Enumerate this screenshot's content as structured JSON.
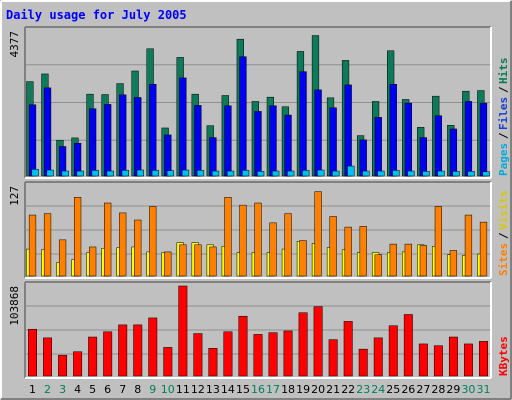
{
  "chart_data": {
    "type": "bar",
    "title": "Daily usage for July 2005",
    "categories": [
      "1",
      "2",
      "3",
      "4",
      "5",
      "6",
      "7",
      "8",
      "9",
      "10",
      "11",
      "12",
      "13",
      "14",
      "15",
      "16",
      "17",
      "18",
      "19",
      "20",
      "21",
      "22",
      "23",
      "24",
      "25",
      "26",
      "27",
      "28",
      "29",
      "30",
      "31"
    ],
    "weekend_days": [
      "2",
      "3",
      "9",
      "10",
      "16",
      "17",
      "23",
      "24",
      "30",
      "31"
    ],
    "panels": [
      {
        "id": "hits",
        "ymax_label": "4377",
        "ymax": 4377,
        "legend": [
          {
            "text": "Pages",
            "color": "#00aadd"
          },
          {
            "text": "Files",
            "color": "#1a3fd0"
          },
          {
            "text": "Hits",
            "color": "#0a7a55"
          }
        ],
        "series": [
          {
            "name": "Hits",
            "color": "#0e7a5a",
            "values": [
              2850,
              3080,
              1080,
              1150,
              2470,
              2460,
              2790,
              3170,
              3840,
              1450,
              3580,
              2470,
              1520,
              2430,
              4130,
              2250,
              2380,
              2090,
              3760,
              4240,
              2360,
              3490,
              1220,
              2250,
              3780,
              2310,
              1470,
              2410,
              1530,
              2560,
              2580
            ]
          },
          {
            "name": "Files",
            "color": "#0000f0",
            "values": [
              2150,
              2660,
              890,
              990,
              2030,
              2160,
              2450,
              2370,
              2770,
              1240,
              2960,
              2130,
              1160,
              2120,
              3600,
              1950,
              2120,
              1840,
              3150,
              2600,
              2060,
              2750,
              1090,
              1770,
              2770,
              2200,
              1160,
              1820,
              1420,
              2250,
              2200
            ]
          },
          {
            "name": "Pages",
            "color": "#00c0f0",
            "values": [
              200,
              180,
              150,
              150,
              170,
              150,
              170,
              180,
              170,
              160,
              180,
              170,
              150,
              150,
              170,
              140,
              150,
              150,
              170,
              180,
              150,
              300,
              150,
              150,
              170,
              150,
              140,
              150,
              140,
              140,
              130
            ]
          }
        ]
      },
      {
        "id": "visits",
        "ymax_label": "127",
        "ymax": 127,
        "legend": [
          {
            "text": "Sites",
            "color": "#ff8000"
          },
          {
            "text": "Visits",
            "color": "#d8c800"
          }
        ],
        "series": [
          {
            "name": "Visits",
            "color": "#ffff00",
            "values": [
              38,
              37,
              19,
              23,
              33,
              39,
              40,
              41,
              34,
              33,
              47,
              47,
              44,
              42,
              33,
              33,
              33,
              38,
              49,
              46,
              40,
              37,
              33,
              33,
              33,
              34,
              44,
              42,
              30,
              29,
              31
            ]
          },
          {
            "name": "Sites",
            "color": "#ff8000",
            "values": [
              86,
              88,
              51,
              111,
              41,
              103,
              89,
              79,
              98,
              34,
              44,
              44,
              41,
              111,
              100,
              103,
              75,
              88,
              50,
              119,
              84,
              69,
              70,
              30,
              45,
              45,
              43,
              98,
              36,
              86,
              76
            ]
          }
        ]
      },
      {
        "id": "kbytes",
        "ymax_label": "103868",
        "ymax": 103868,
        "legend": [
          {
            "text": "KBytes",
            "color": "#ff0000"
          }
        ],
        "series": [
          {
            "name": "KBytes",
            "color": "#ff0000",
            "values": [
              54000,
              44000,
              24000,
              28000,
              45000,
              51000,
              59000,
              59000,
              67000,
              33000,
              103868,
              49000,
              32000,
              51000,
              69000,
              48000,
              50000,
              52000,
              73000,
              80000,
              42000,
              63000,
              31000,
              44000,
              58000,
              71000,
              37000,
              35000,
              45000,
              37000,
              40000
            ]
          }
        ]
      }
    ]
  },
  "colors": {
    "background": "#c0c0c0",
    "border_light": "#ffffff",
    "border_dark": "#808080",
    "title": "#0000ff",
    "weekday_label": "#000000",
    "weekend_label": "#00805a"
  }
}
